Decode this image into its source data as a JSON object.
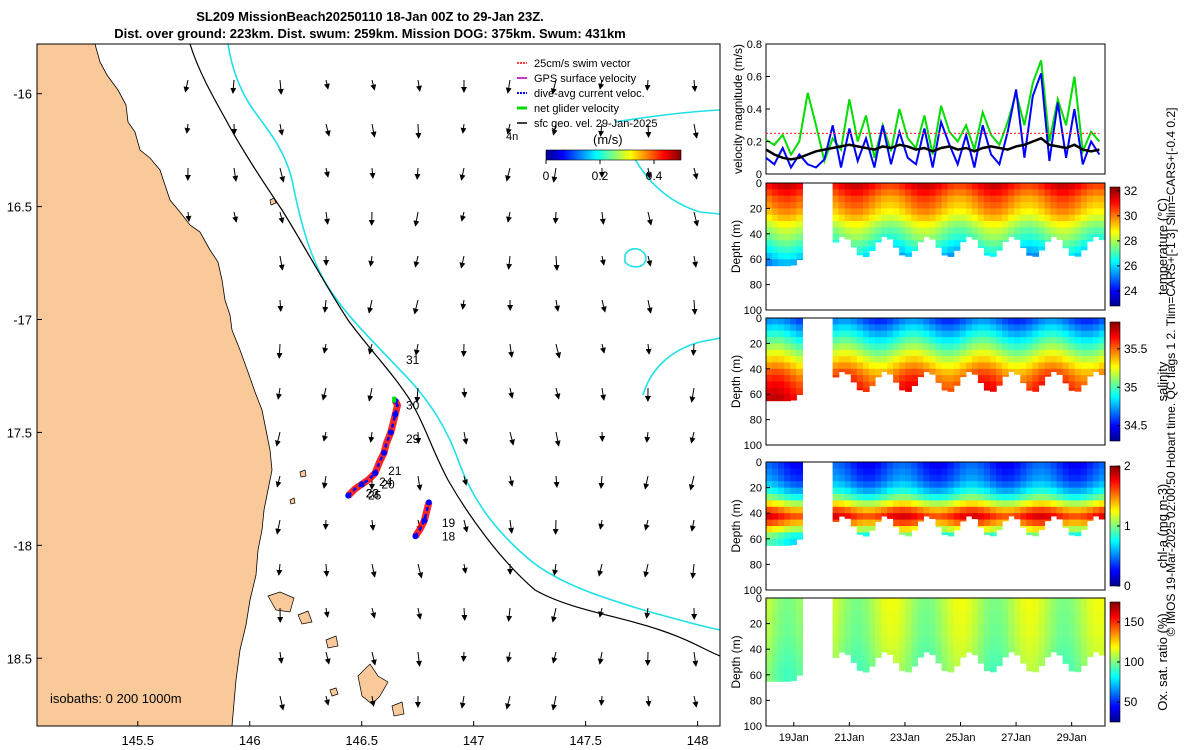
{
  "title": {
    "line1": "SL209 MissionBeach20250110 18-Jan 00Z to 29-Jan 23Z.",
    "line2": "Dist. over ground: 223km. Dist. swum: 259km. Mission DOG: 375km. Swum: 431km"
  },
  "side_note": "© IMOS 19-Mar-2025 02:00:50 Hobart time. QC flags 1  2. Tlim=CARS+[-1 3] Slim=CARS+[-0.4 0.2]",
  "colors": {
    "land": "#f9c99a",
    "isobath_200": "#1fe0e8",
    "isobath_1000": "#000000",
    "track": "#ff0000",
    "current": "#0000ff",
    "glider": "#00dd00",
    "sfc_vel": "#000000",
    "swim": "#ff4040",
    "gps": "#cc33cc"
  },
  "chart_data": [
    {
      "type": "map",
      "title": "Glider track and velocity vectors",
      "xlim": [
        145.05,
        148.1
      ],
      "ylim": [
        -18.8,
        -15.78
      ],
      "x_ticks": [
        145.5,
        146,
        146.5,
        147,
        147.5,
        148
      ],
      "x_tick_labels": [
        "145.5",
        "146",
        "146.5",
        "147",
        "147.5",
        "148"
      ],
      "y_ticks": [
        -16,
        -16.5,
        -17,
        -17.5,
        -18,
        -18.5
      ],
      "y_tick_labels": [
        "-16",
        "16.5",
        "-17",
        "17.5",
        "-18",
        "18.5"
      ],
      "legend": [
        {
          "label": "25cm/s swim vector",
          "color": "#ff4040"
        },
        {
          "label": "GPS surface velocity",
          "color": "#cc33cc"
        },
        {
          "label": "dive-avg current veloc.",
          "color": "#0000ff"
        },
        {
          "label": "net glider velocity",
          "color": "#00dd00"
        },
        {
          "label": "sfc geo. vel. 29-Jan-2025",
          "color": "#000000"
        }
      ],
      "colorbar": {
        "label": "(m/s)",
        "range": [
          0,
          0.5
        ],
        "ticks": [
          0,
          0.2,
          0.4
        ],
        "tick_labels": [
          "0",
          "0.2",
          "0.4"
        ]
      },
      "stray_label": "4n",
      "isobath_note": "isobaths: 0   200  1000m",
      "day_labels": [
        {
          "text": "31",
          "lon": 146.68,
          "lat": -17.18
        },
        {
          "text": "30",
          "lon": 146.68,
          "lat": -17.38
        },
        {
          "text": "29",
          "lon": 146.68,
          "lat": -17.53
        },
        {
          "text": "21",
          "lon": 146.6,
          "lat": -17.67
        },
        {
          "text": "24",
          "lon": 146.56,
          "lat": -17.72
        },
        {
          "text": "20",
          "lon": 146.57,
          "lat": -17.73
        },
        {
          "text": "22",
          "lon": 146.5,
          "lat": -17.77
        },
        {
          "text": "23",
          "lon": 146.5,
          "lat": -17.77
        },
        {
          "text": "25",
          "lon": 146.51,
          "lat": -17.78
        },
        {
          "text": "19",
          "lon": 146.84,
          "lat": -17.9
        },
        {
          "text": "18",
          "lon": 146.84,
          "lat": -17.96
        }
      ],
      "track_north": [
        [
          146.44,
          -17.78
        ],
        [
          146.47,
          -17.75
        ],
        [
          146.5,
          -17.73
        ],
        [
          146.53,
          -17.71
        ],
        [
          146.56,
          -17.68
        ],
        [
          146.58,
          -17.63
        ],
        [
          146.6,
          -17.59
        ],
        [
          146.61,
          -17.55
        ],
        [
          146.63,
          -17.5
        ],
        [
          146.64,
          -17.46
        ],
        [
          146.65,
          -17.42
        ],
        [
          146.66,
          -17.38
        ],
        [
          146.65,
          -17.36
        ]
      ],
      "track_south": [
        [
          146.74,
          -17.96
        ],
        [
          146.76,
          -17.93
        ],
        [
          146.78,
          -17.89
        ],
        [
          146.79,
          -17.85
        ],
        [
          146.8,
          -17.81
        ]
      ]
    },
    {
      "type": "line",
      "title": "velocity magnitude",
      "ylabel": "velocity magnitude (m/s)",
      "ylim": [
        0,
        0.8
      ],
      "y_ticks": [
        0,
        0.2,
        0.4,
        0.6,
        0.8
      ],
      "y_tick_labels": [
        "0",
        "0.2",
        "0.4",
        "0.6",
        "0.8"
      ],
      "xlim": [
        18,
        30.2
      ],
      "x": [
        18.0,
        18.3,
        18.6,
        18.9,
        19.2,
        19.5,
        19.8,
        20.1,
        20.4,
        20.7,
        21.0,
        21.3,
        21.6,
        21.9,
        22.2,
        22.5,
        22.8,
        23.1,
        23.4,
        23.7,
        24.0,
        24.3,
        24.6,
        24.9,
        25.2,
        25.5,
        25.8,
        26.1,
        26.4,
        26.7,
        27.0,
        27.3,
        27.6,
        27.9,
        28.2,
        28.5,
        28.8,
        29.1,
        29.4,
        29.7,
        30.0
      ],
      "series": [
        {
          "name": "net glider velocity",
          "color": "#00dd00",
          "values": [
            0.21,
            0.18,
            0.24,
            0.12,
            0.2,
            0.5,
            0.3,
            0.08,
            0.22,
            0.15,
            0.46,
            0.2,
            0.36,
            0.1,
            0.3,
            0.14,
            0.4,
            0.22,
            0.16,
            0.36,
            0.12,
            0.42,
            0.26,
            0.2,
            0.3,
            0.15,
            0.38,
            0.24,
            0.18,
            0.32,
            0.5,
            0.3,
            0.56,
            0.7,
            0.2,
            0.46,
            0.3,
            0.6,
            0.14,
            0.26,
            0.2
          ]
        },
        {
          "name": "dive-avg current veloc.",
          "color": "#0000ff",
          "values": [
            0.1,
            0.06,
            0.16,
            0.04,
            0.12,
            0.06,
            0.04,
            0.09,
            0.3,
            0.04,
            0.28,
            0.08,
            0.22,
            0.04,
            0.3,
            0.06,
            0.26,
            0.1,
            0.06,
            0.28,
            0.04,
            0.32,
            0.18,
            0.06,
            0.24,
            0.04,
            0.3,
            0.12,
            0.06,
            0.26,
            0.52,
            0.1,
            0.48,
            0.62,
            0.08,
            0.44,
            0.1,
            0.4,
            0.06,
            0.2,
            0.12
          ]
        },
        {
          "name": "25cm/s swim vector",
          "color": "#ff4040",
          "values": [
            0.25,
            0.25,
            0.25,
            0.25,
            0.25,
            0.25,
            0.25,
            0.25,
            0.25,
            0.25,
            0.25,
            0.25,
            0.25,
            0.25,
            0.25,
            0.25,
            0.25,
            0.25,
            0.25,
            0.25,
            0.25,
            0.25,
            0.25,
            0.25,
            0.25,
            0.25,
            0.25,
            0.25,
            0.25,
            0.25,
            0.25,
            0.25,
            0.25,
            0.25,
            0.25,
            0.25,
            0.25,
            0.25,
            0.25,
            0.25,
            0.25
          ]
        },
        {
          "name": "mean",
          "color": "#000000",
          "values": [
            0.15,
            0.12,
            0.1,
            0.09,
            0.1,
            0.12,
            0.14,
            0.15,
            0.16,
            0.17,
            0.18,
            0.17,
            0.16,
            0.15,
            0.17,
            0.16,
            0.18,
            0.17,
            0.15,
            0.16,
            0.14,
            0.16,
            0.17,
            0.15,
            0.16,
            0.14,
            0.16,
            0.17,
            0.16,
            0.15,
            0.17,
            0.18,
            0.2,
            0.22,
            0.18,
            0.17,
            0.16,
            0.18,
            0.15,
            0.14,
            0.15
          ]
        }
      ]
    },
    {
      "type": "heatmap",
      "title": "temperature",
      "ylabel": "Depth (m)",
      "colorbar_label": "temperature (°C)",
      "ylim": [
        100,
        0
      ],
      "y_ticks": [
        0,
        20,
        40,
        60,
        80,
        100
      ],
      "y_tick_labels": [
        "0",
        "20",
        "40",
        "60",
        "80",
        "100"
      ],
      "clim": [
        22.8,
        32.3
      ],
      "colorbar_ticks": [
        24,
        26,
        28,
        30,
        32
      ],
      "colorbar_tick_labels": [
        "24",
        "26",
        "28",
        "30",
        "32"
      ],
      "depth_profile": [
        0,
        5,
        10,
        15,
        20,
        25,
        30,
        35,
        40,
        45,
        50,
        55,
        60,
        65
      ],
      "value_profile": [
        31,
        30.5,
        30,
        29.7,
        29.3,
        28.8,
        28.2,
        27.7,
        27.3,
        26.8,
        26.3,
        25.8,
        25.2,
        24.8
      ]
    },
    {
      "type": "heatmap",
      "title": "salinity",
      "ylabel": "Depth (m)",
      "colorbar_label": "salinity",
      "ylim": [
        100,
        0
      ],
      "y_ticks": [
        0,
        20,
        40,
        60,
        80,
        100
      ],
      "y_tick_labels": [
        "0",
        "20",
        "40",
        "60",
        "80",
        "100"
      ],
      "clim": [
        34.3,
        35.85
      ],
      "colorbar_ticks": [
        34.5,
        35,
        35.5
      ],
      "colorbar_tick_labels": [
        "34.5",
        "35",
        "35.5"
      ],
      "depth_profile": [
        0,
        5,
        10,
        15,
        20,
        25,
        30,
        35,
        40,
        45,
        50,
        55,
        60,
        65
      ],
      "value_profile": [
        34.65,
        34.75,
        34.85,
        34.95,
        35.05,
        35.15,
        35.25,
        35.35,
        35.45,
        35.52,
        35.58,
        35.62,
        35.66,
        35.7
      ]
    },
    {
      "type": "heatmap",
      "title": "chl-a",
      "ylabel": "Depth (m)",
      "colorbar_label": "chl-a (mg m-3)",
      "ylim": [
        100,
        0
      ],
      "y_ticks": [
        0,
        20,
        40,
        60,
        80,
        100
      ],
      "y_tick_labels": [
        "0",
        "20",
        "40",
        "60",
        "80",
        "100"
      ],
      "clim": [
        0,
        2
      ],
      "colorbar_ticks": [
        0,
        1,
        2
      ],
      "colorbar_tick_labels": [
        "0",
        "1",
        "2"
      ],
      "depth_profile": [
        0,
        5,
        10,
        15,
        20,
        25,
        30,
        35,
        40,
        45,
        50,
        55,
        60,
        65
      ],
      "value_profile": [
        0.35,
        0.4,
        0.45,
        0.55,
        0.7,
        0.9,
        1.2,
        1.5,
        1.7,
        1.5,
        1.2,
        0.9,
        0.8,
        0.7
      ]
    },
    {
      "type": "heatmap",
      "title": "Ox. sat. ratio",
      "ylabel": "Depth (m)",
      "colorbar_label": "Ox. sat. ratio (%)",
      "ylim": [
        100,
        0
      ],
      "y_ticks": [
        0,
        20,
        40,
        60,
        80,
        100
      ],
      "y_tick_labels": [
        "0",
        "20",
        "40",
        "60",
        "80",
        "100"
      ],
      "clim": [
        25,
        175
      ],
      "colorbar_ticks": [
        50,
        100,
        150
      ],
      "colorbar_tick_labels": [
        "50",
        "100",
        "150"
      ],
      "depth_profile": [
        0,
        5,
        10,
        15,
        20,
        25,
        30,
        35,
        40,
        45,
        50,
        55,
        60,
        65
      ],
      "value_profile": [
        108,
        108,
        107,
        107,
        106,
        106,
        105,
        104,
        103,
        102,
        101,
        100,
        100,
        99
      ]
    }
  ],
  "time_axis": {
    "ticks": [
      19,
      21,
      23,
      25,
      27,
      29
    ],
    "tick_labels": [
      "19Jan",
      "21Jan",
      "23Jan",
      "25Jan",
      "27Jan",
      "29Jan"
    ],
    "xlim": [
      18,
      30.2
    ],
    "data_gap": [
      19.45,
      20.2
    ]
  }
}
